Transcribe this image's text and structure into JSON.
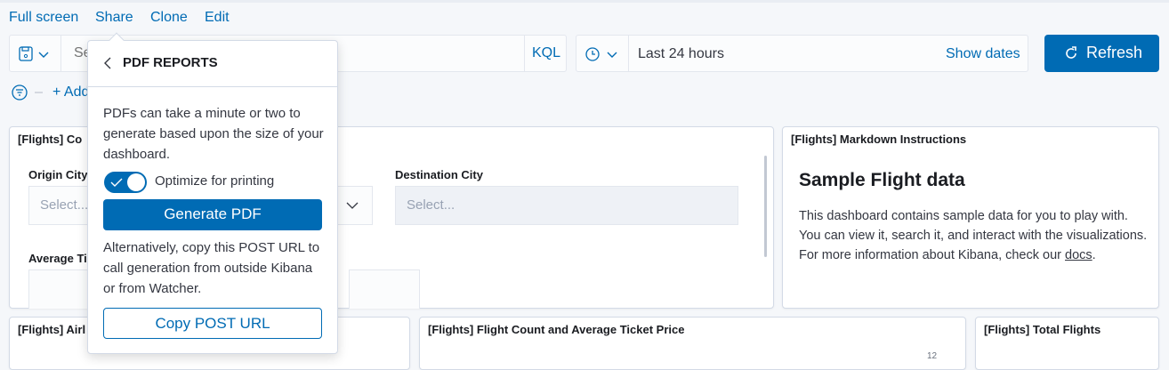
{
  "top_nav": [
    "Full screen",
    "Share",
    "Clone",
    "Edit"
  ],
  "query_bar": {
    "placeholder_partial": "Se",
    "language": "KQL"
  },
  "date_picker": {
    "range": "Last 24 hours",
    "show_dates": "Show dates"
  },
  "refresh": {
    "label": "Refresh"
  },
  "filter_bar": {
    "add_partial": "+ Add"
  },
  "controls_panel": {
    "title_partial": "[Flights] Co",
    "origin_label": "Origin City",
    "origin_placeholder": "Select...",
    "destination_label": "Destination City",
    "destination_placeholder": "Select...",
    "avg_label_partial": "Average Ti"
  },
  "markdown_panel": {
    "title": "[Flights] Markdown Instructions",
    "heading": "Sample Flight data",
    "body_before": "This dashboard contains sample data for you to play with. You can view it, search it, and interact with the visualizations. For more information about Kibana, check our ",
    "link": "docs",
    "body_after": "."
  },
  "bottom_panels": [
    {
      "title": "[Flights] Airl"
    },
    {
      "title": "[Flights] Flight Count and Average Ticket Price",
      "tick": "12"
    },
    {
      "title": "[Flights] Total Flights"
    }
  ],
  "popover": {
    "title": "PDF REPORTS",
    "description": "PDFs can take a minute or two to generate based upon the size of your dashboard.",
    "toggle_label": "Optimize for printing",
    "toggle_on": true,
    "generate": "Generate PDF",
    "alt_text": "Alternatively, copy this POST URL to call generation from outside Kibana or from Watcher.",
    "copy": "Copy POST URL"
  },
  "colors": {
    "accent": "#006BB4",
    "text": "#343741"
  }
}
